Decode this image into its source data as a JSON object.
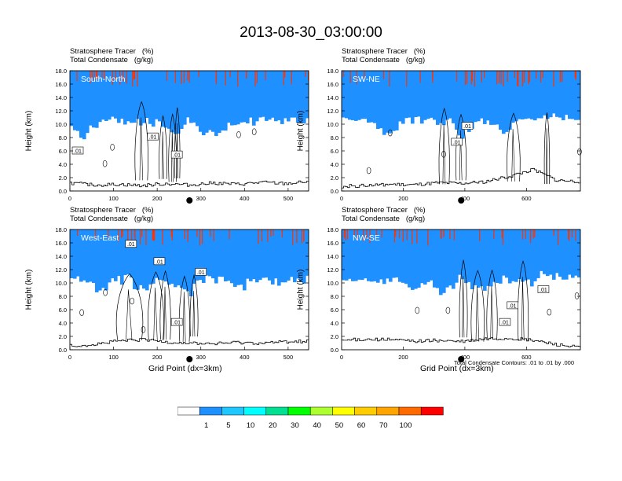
{
  "title": "2013-08-30_03:00:00",
  "colors": {
    "levels": [
      "#ffffff",
      "#1e90ff",
      "#1ec8ff",
      "#00ffff",
      "#00e090",
      "#00ff00",
      "#adff2f",
      "#ffff00",
      "#ffcc00",
      "#ffa500",
      "#ff6a00",
      "#ff0000"
    ],
    "line": "#000000",
    "marker": "#000000"
  },
  "chart_data": [
    {
      "type": "heatmap",
      "panel": "top-left",
      "header_lines": [
        "Stratosphere Tracer   (%)",
        "Total Condensate   (g/kg)"
      ],
      "label": "South-North",
      "ylabel": "Height (km)",
      "xlabel": "",
      "xlim": [
        0,
        547
      ],
      "ylim": [
        0,
        18
      ],
      "xticks": [
        0,
        100,
        200,
        300,
        400,
        500
      ],
      "yticks": [
        "0.0",
        "2.0",
        "4.0",
        "6.0",
        "8.0",
        "10.0",
        "12.0",
        "14.0",
        "16.0",
        "18.0"
      ],
      "marker_x": 274,
      "contour_labels": [
        {
          "x": 18,
          "y": 6.0,
          "text": ".01"
        },
        {
          "x": 190,
          "y": 8.1,
          "text": ".01"
        },
        {
          "x": 245,
          "y": 5.4,
          "text": ".01"
        }
      ],
      "terrain_km": [
        1.2,
        0.9,
        1.0,
        0.8,
        1.1,
        0.9,
        1.2,
        1.0,
        1.3,
        1.1,
        1.4
      ]
    },
    {
      "type": "heatmap",
      "panel": "top-right",
      "header_lines": [
        "Stratosphere Tracer   (%)",
        "Total Condensate   (g/kg)"
      ],
      "label": "SW-NE",
      "ylabel": "Height (km)",
      "xlabel": "",
      "xlim": [
        0,
        775
      ],
      "ylim": [
        0,
        18
      ],
      "xticks": [
        0,
        200,
        400,
        600
      ],
      "yticks": [
        "0.0",
        "2.0",
        "4.0",
        "6.0",
        "8.0",
        "10.0",
        "12.0",
        "14.0",
        "16.0",
        "18.0"
      ],
      "marker_x": 388,
      "contour_labels": [
        {
          "x": 374,
          "y": 7.3,
          "text": ".01"
        },
        {
          "x": 408,
          "y": 9.7,
          "text": ".01"
        }
      ],
      "terrain_km": [
        0.7,
        0.8,
        1.0,
        0.9,
        1.2,
        1.1,
        1.4,
        2.2,
        3.2,
        1.6,
        1.4
      ]
    },
    {
      "type": "heatmap",
      "panel": "bottom-left",
      "header_lines": [
        "Stratosphere Tracer   (%)",
        "Total Condensate   (g/kg)"
      ],
      "label": "West-East",
      "ylabel": "Height (km)",
      "xlabel": "Grid Point (dx=3km)",
      "xlim": [
        0,
        547
      ],
      "ylim": [
        0,
        18
      ],
      "xticks": [
        0,
        100,
        200,
        300,
        400,
        500
      ],
      "yticks": [
        "0.0",
        "2.0",
        "4.0",
        "6.0",
        "8.0",
        "10.0",
        "12.0",
        "14.0",
        "16.0",
        "18.0"
      ],
      "marker_x": 274,
      "contour_labels": [
        {
          "x": 140,
          "y": 15.8,
          "text": ".01"
        },
        {
          "x": 205,
          "y": 13.2,
          "text": ".01"
        },
        {
          "x": 300,
          "y": 11.6,
          "text": ".01"
        },
        {
          "x": 245,
          "y": 4.1,
          "text": ".01"
        }
      ],
      "terrain_km": [
        0.6,
        0.8,
        1.3,
        1.5,
        1.2,
        1.0,
        0.9,
        1.1,
        1.0,
        1.2,
        1.3
      ]
    },
    {
      "type": "heatmap",
      "panel": "bottom-right",
      "header_lines": [
        "Stratosphere Tracer   (%)",
        "Total Condensate   (g/kg)"
      ],
      "label": "NW-SE",
      "ylabel": "Height (km)",
      "xlabel": "Grid Point (dx=3km)",
      "xlim": [
        0,
        775
      ],
      "ylim": [
        0,
        18
      ],
      "xticks": [
        0,
        200,
        400,
        600
      ],
      "yticks": [
        "0.0",
        "2.0",
        "4.0",
        "6.0",
        "8.0",
        "10.0",
        "12.0",
        "14.0",
        "16.0",
        "18.0"
      ],
      "marker_x": 388,
      "contour_labels": [
        {
          "x": 655,
          "y": 9.0,
          "text": ".01"
        },
        {
          "x": 555,
          "y": 6.6,
          "text": ".01"
        },
        {
          "x": 530,
          "y": 4.1,
          "text": ".01"
        }
      ],
      "terrain_km": [
        1.4,
        1.6,
        1.5,
        1.3,
        1.4,
        1.2,
        1.6,
        1.7,
        1.4,
        0.8,
        0.3
      ]
    }
  ],
  "colorbar": {
    "boundaries": [
      "1",
      "5",
      "10",
      "20",
      "30",
      "40",
      "50",
      "60",
      "70",
      "100"
    ]
  },
  "contour_note": "Total Condensate Contours: .01 to .01 by .000"
}
